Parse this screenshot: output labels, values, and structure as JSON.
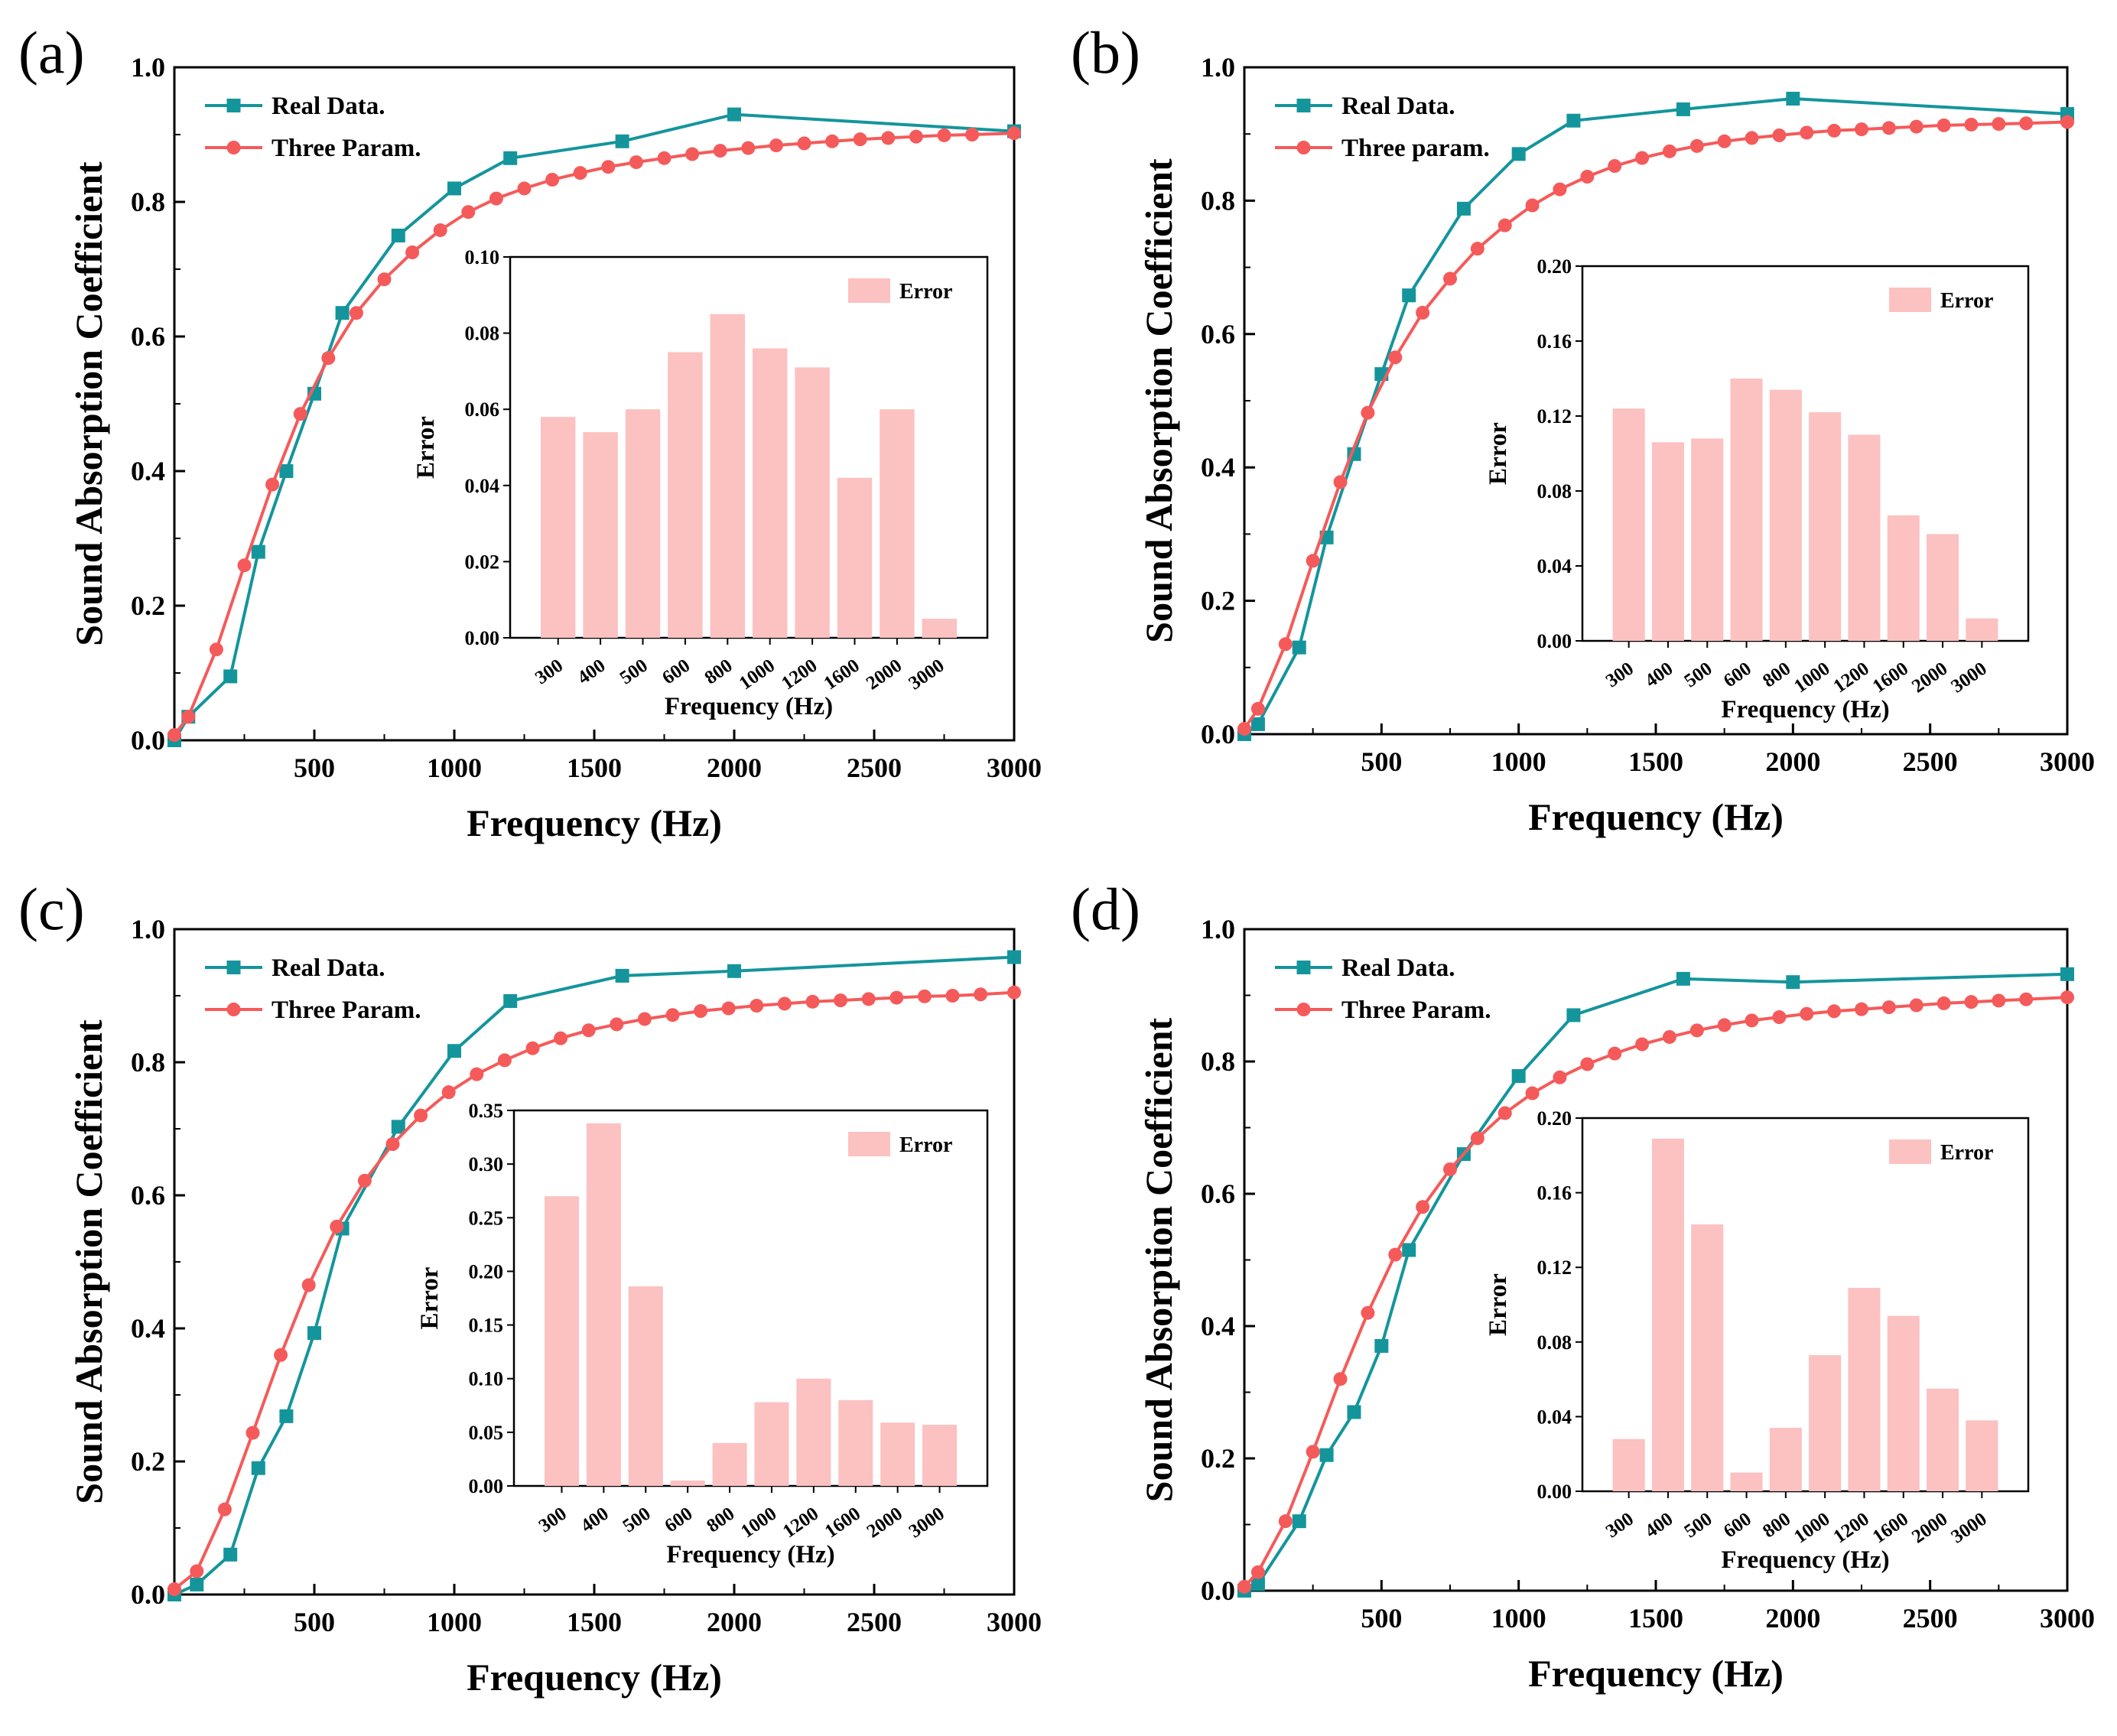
{
  "colors": {
    "real": "#14959c",
    "model": "#f55a5a",
    "bar": "#fcc1c1",
    "axis": "#000000"
  },
  "chart_data": [
    {
      "type": "line",
      "panel_label": "(a)",
      "xlabel": "Frequency (Hz)",
      "ylabel": "Sound Absorption Coefficient",
      "xlim": [
        0,
        3000
      ],
      "ylim": [
        0,
        1.0
      ],
      "xticks": [
        500,
        1000,
        1500,
        2000,
        2500,
        3000
      ],
      "xtick_labels": [
        "500",
        "1000",
        "1500",
        "2000",
        "2500",
        "3000"
      ],
      "yticks": [
        0,
        0.2,
        0.4,
        0.6,
        0.8,
        1.0
      ],
      "ytick_labels": [
        "0.0",
        "0.2",
        "0.4",
        "0.6",
        "0.8",
        "1.0"
      ],
      "series": [
        {
          "name": "Real Data.",
          "x": [
            0,
            50,
            200,
            300,
            400,
            500,
            600,
            800,
            1000,
            1200,
            1600,
            2000,
            3000
          ],
          "y": [
            0.0,
            0.035,
            0.095,
            0.28,
            0.4,
            0.515,
            0.635,
            0.75,
            0.82,
            0.865,
            0.89,
            0.93,
            0.905
          ]
        },
        {
          "name": "Three Param.",
          "x": [
            0,
            50,
            150,
            250,
            350,
            450,
            550,
            650,
            750,
            850,
            950,
            1050,
            1150,
            1250,
            1350,
            1450,
            1550,
            1650,
            1750,
            1850,
            1950,
            2050,
            2150,
            2250,
            2350,
            2450,
            2550,
            2650,
            2750,
            2850,
            3000
          ],
          "y": [
            0.008,
            0.035,
            0.135,
            0.26,
            0.38,
            0.485,
            0.568,
            0.635,
            0.685,
            0.725,
            0.758,
            0.785,
            0.805,
            0.82,
            0.833,
            0.843,
            0.852,
            0.859,
            0.865,
            0.871,
            0.876,
            0.88,
            0.884,
            0.887,
            0.89,
            0.893,
            0.895,
            0.897,
            0.899,
            0.9,
            0.902
          ]
        }
      ],
      "inset": {
        "type": "bar",
        "ylabel": "Error",
        "xlabel": "Frequency (Hz)",
        "legend": "Error",
        "categories": [
          "300",
          "400",
          "500",
          "600",
          "800",
          "1000",
          "1200",
          "1600",
          "2000",
          "3000"
        ],
        "values": [
          0.058,
          0.054,
          0.06,
          0.075,
          0.085,
          0.076,
          0.071,
          0.042,
          0.06,
          0.005
        ],
        "ylim": [
          0,
          0.1
        ],
        "yticks": [
          0,
          0.02,
          0.04,
          0.06,
          0.08,
          0.1
        ],
        "ytick_labels": [
          "0.00",
          "0.02",
          "0.04",
          "0.06",
          "0.08",
          "0.10"
        ]
      }
    },
    {
      "type": "line",
      "panel_label": "(b)",
      "xlabel": "Frequency (Hz)",
      "ylabel": "Sound Absorption Coefficient",
      "xlim": [
        0,
        3000
      ],
      "ylim": [
        0,
        1.0
      ],
      "xticks": [
        500,
        1000,
        1500,
        2000,
        2500,
        3000
      ],
      "xtick_labels": [
        "500",
        "1000",
        "1500",
        "2000",
        "2500",
        "3000"
      ],
      "yticks": [
        0,
        0.2,
        0.4,
        0.6,
        0.8,
        1.0
      ],
      "ytick_labels": [
        "0.0",
        "0.2",
        "0.4",
        "0.6",
        "0.8",
        "1.0"
      ],
      "series": [
        {
          "name": "Real Data.",
          "x": [
            0,
            50,
            200,
            300,
            400,
            500,
            600,
            800,
            1000,
            1200,
            1600,
            2000,
            3000
          ],
          "y": [
            0.0,
            0.015,
            0.13,
            0.295,
            0.42,
            0.54,
            0.658,
            0.788,
            0.87,
            0.92,
            0.937,
            0.953,
            0.93
          ]
        },
        {
          "name": "Three param.",
          "x": [
            0,
            50,
            150,
            250,
            350,
            450,
            550,
            650,
            750,
            850,
            950,
            1050,
            1150,
            1250,
            1350,
            1450,
            1550,
            1650,
            1750,
            1850,
            1950,
            2050,
            2150,
            2250,
            2350,
            2450,
            2550,
            2650,
            2750,
            2850,
            3000
          ],
          "y": [
            0.008,
            0.038,
            0.135,
            0.26,
            0.378,
            0.482,
            0.565,
            0.632,
            0.683,
            0.728,
            0.763,
            0.793,
            0.817,
            0.836,
            0.852,
            0.864,
            0.874,
            0.882,
            0.889,
            0.894,
            0.898,
            0.902,
            0.905,
            0.907,
            0.909,
            0.911,
            0.913,
            0.914,
            0.915,
            0.916,
            0.918
          ]
        }
      ],
      "inset": {
        "type": "bar",
        "ylabel": "Error",
        "xlabel": "Frequency (Hz)",
        "legend": "Error",
        "categories": [
          "300",
          "400",
          "500",
          "600",
          "800",
          "1000",
          "1200",
          "1600",
          "2000",
          "3000"
        ],
        "values": [
          0.124,
          0.106,
          0.108,
          0.14,
          0.134,
          0.122,
          0.11,
          0.067,
          0.057,
          0.012
        ],
        "ylim": [
          0,
          0.2
        ],
        "yticks": [
          0,
          0.04,
          0.08,
          0.12,
          0.16,
          0.2
        ],
        "ytick_labels": [
          "0.00",
          "0.04",
          "0.08",
          "0.12",
          "0.16",
          "0.20"
        ]
      }
    },
    {
      "type": "line",
      "panel_label": "(c)",
      "xlabel": "Frequency (Hz)",
      "ylabel": "Sound Absorption Coefficient",
      "xlim": [
        0,
        3000
      ],
      "ylim": [
        0,
        1.0
      ],
      "xticks": [
        500,
        1000,
        1500,
        2000,
        2500,
        3000
      ],
      "xtick_labels": [
        "500",
        "1000",
        "1500",
        "2000",
        "2500",
        "3000"
      ],
      "yticks": [
        0,
        0.2,
        0.4,
        0.6,
        0.8,
        1.0
      ],
      "ytick_labels": [
        "0.0",
        "0.2",
        "0.4",
        "0.6",
        "0.8",
        "1.0"
      ],
      "series": [
        {
          "name": "Real Data.",
          "x": [
            0,
            80,
            200,
            300,
            400,
            500,
            600,
            800,
            1000,
            1200,
            1600,
            2000,
            3000
          ],
          "y": [
            0.0,
            0.015,
            0.06,
            0.19,
            0.268,
            0.393,
            0.55,
            0.703,
            0.817,
            0.892,
            0.93,
            0.937,
            0.958
          ]
        },
        {
          "name": "Three Param.",
          "x": [
            0,
            80,
            180,
            280,
            380,
            480,
            580,
            680,
            780,
            880,
            980,
            1080,
            1180,
            1280,
            1380,
            1480,
            1580,
            1680,
            1780,
            1880,
            1980,
            2080,
            2180,
            2280,
            2380,
            2480,
            2580,
            2680,
            2780,
            2880,
            3000
          ],
          "y": [
            0.008,
            0.035,
            0.128,
            0.243,
            0.36,
            0.465,
            0.553,
            0.622,
            0.677,
            0.72,
            0.755,
            0.782,
            0.803,
            0.821,
            0.836,
            0.848,
            0.857,
            0.865,
            0.871,
            0.877,
            0.881,
            0.885,
            0.888,
            0.891,
            0.893,
            0.895,
            0.897,
            0.899,
            0.9,
            0.902,
            0.905
          ]
        }
      ],
      "inset": {
        "type": "bar",
        "ylabel": "Error",
        "xlabel": "Frequency (Hz)",
        "legend": "Error",
        "categories": [
          "300",
          "400",
          "500",
          "600",
          "800",
          "1000",
          "1200",
          "1600",
          "2000",
          "3000"
        ],
        "values": [
          0.27,
          0.338,
          0.186,
          0.005,
          0.04,
          0.078,
          0.1,
          0.08,
          0.059,
          0.057
        ],
        "ylim": [
          0,
          0.35
        ],
        "yticks": [
          0,
          0.05,
          0.1,
          0.15,
          0.2,
          0.25,
          0.3,
          0.35
        ],
        "ytick_labels": [
          "0.00",
          "0.05",
          "0.10",
          "0.15",
          "0.20",
          "0.25",
          "0.30",
          "0.35"
        ]
      }
    },
    {
      "type": "line",
      "panel_label": "(d)",
      "xlabel": "Frequency (Hz)",
      "ylabel": "Sound Absorption Coefficient",
      "xlim": [
        0,
        3000
      ],
      "ylim": [
        0,
        1.0
      ],
      "xticks": [
        500,
        1000,
        1500,
        2000,
        2500,
        3000
      ],
      "xtick_labels": [
        "500",
        "1000",
        "1500",
        "2000",
        "2500",
        "3000"
      ],
      "yticks": [
        0,
        0.2,
        0.4,
        0.6,
        0.8,
        1.0
      ],
      "ytick_labels": [
        "0.0",
        "0.2",
        "0.4",
        "0.6",
        "0.8",
        "1.0"
      ],
      "series": [
        {
          "name": "Real Data.",
          "x": [
            0,
            50,
            200,
            300,
            400,
            500,
            600,
            800,
            1000,
            1200,
            1600,
            2000,
            3000
          ],
          "y": [
            0.0,
            0.01,
            0.105,
            0.205,
            0.27,
            0.37,
            0.515,
            0.66,
            0.778,
            0.87,
            0.925,
            0.92,
            0.932
          ]
        },
        {
          "name": "Three Param.",
          "x": [
            0,
            50,
            150,
            250,
            350,
            450,
            550,
            650,
            750,
            850,
            950,
            1050,
            1150,
            1250,
            1350,
            1450,
            1550,
            1650,
            1750,
            1850,
            1950,
            2050,
            2150,
            2250,
            2350,
            2450,
            2550,
            2650,
            2750,
            2850,
            3000
          ],
          "y": [
            0.006,
            0.028,
            0.105,
            0.21,
            0.32,
            0.42,
            0.508,
            0.58,
            0.637,
            0.684,
            0.722,
            0.752,
            0.776,
            0.796,
            0.812,
            0.826,
            0.837,
            0.847,
            0.855,
            0.862,
            0.867,
            0.872,
            0.876,
            0.879,
            0.882,
            0.885,
            0.888,
            0.89,
            0.892,
            0.894,
            0.897
          ]
        }
      ],
      "inset": {
        "type": "bar",
        "ylabel": "Error",
        "xlabel": "Frequency (Hz)",
        "legend": "Error",
        "categories": [
          "300",
          "400",
          "500",
          "600",
          "800",
          "1000",
          "1200",
          "1600",
          "2000",
          "3000"
        ],
        "values": [
          0.028,
          0.189,
          0.143,
          0.01,
          0.034,
          0.073,
          0.109,
          0.094,
          0.055,
          0.038
        ],
        "ylim": [
          0,
          0.2
        ],
        "yticks": [
          0,
          0.04,
          0.08,
          0.12,
          0.16,
          0.2
        ],
        "ytick_labels": [
          "0.00",
          "0.04",
          "0.08",
          "0.12",
          "0.16",
          "0.20"
        ]
      }
    }
  ]
}
